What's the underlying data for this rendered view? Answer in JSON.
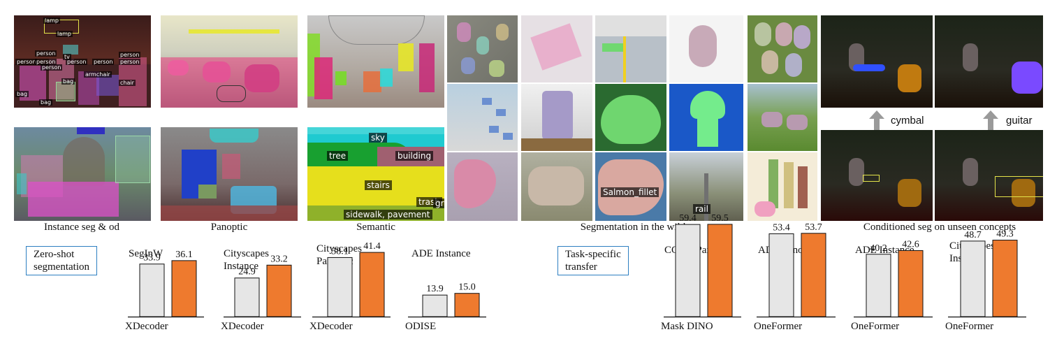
{
  "colors": {
    "baseline_bar": "#e6e6e6",
    "ours_bar": "#ee7a2e",
    "bar_stroke": "#111111",
    "box_border": "#2d7fc1",
    "arrow": "#9a9a9a"
  },
  "captions": {
    "instance": "Instance seg & od",
    "panoptic": "Panoptic",
    "semantic": "Semantic",
    "wild": "Segmentation in the wild",
    "conditioned": "Conditioned seg on unseen concepts"
  },
  "concepts": {
    "cymbal": "cymbal",
    "guitar": "guitar"
  },
  "tags": {
    "instance": [
      "lamp",
      "lamp",
      "person",
      "person",
      "person",
      "person",
      "person",
      "person",
      "person",
      "person",
      "tv",
      "armchair",
      "chair",
      "bag",
      "bag",
      "bag"
    ],
    "semantic": [
      "sky",
      "tree",
      "building",
      "stairs",
      "trash",
      "gra",
      "sidewalk, pavement"
    ],
    "wild": [
      "Salmon_fillet",
      "rail"
    ]
  },
  "sections": {
    "zero_shot": "Zero-shot\nsegmentation",
    "task_specific": "Task-specific\ntransfer"
  },
  "chart_data": [
    {
      "type": "bar",
      "title": "SegInW",
      "categories": [
        "XDecoder",
        ""
      ],
      "values": [
        33.9,
        36.1
      ],
      "baseline_label": "XDecoder"
    },
    {
      "type": "bar",
      "title": "Cityscapes\nInstance",
      "categories": [
        "XDecoder",
        ""
      ],
      "values": [
        24.9,
        33.2
      ],
      "baseline_label": "XDecoder"
    },
    {
      "type": "bar",
      "title": "Cityscapes\nPanoptic",
      "categories": [
        "XDecoder",
        ""
      ],
      "values": [
        38.1,
        41.4
      ],
      "baseline_label": "XDecoder"
    },
    {
      "type": "bar",
      "title": "ADE Instance",
      "categories": [
        "ODISE",
        ""
      ],
      "values": [
        13.9,
        15.0
      ],
      "baseline_label": "ODISE"
    },
    {
      "type": "bar",
      "title": "COCO Panoptic",
      "categories": [
        "Mask DINO",
        ""
      ],
      "values": [
        59.4,
        59.5
      ],
      "baseline_label": "Mask DINO"
    },
    {
      "type": "bar",
      "title": "ADE Panoptic",
      "categories": [
        "OneFormer",
        ""
      ],
      "values": [
        53.4,
        53.7
      ],
      "baseline_label": "OneFormer"
    },
    {
      "type": "bar",
      "title": "ADE Instance",
      "categories": [
        "OneFormer",
        ""
      ],
      "values": [
        40.2,
        42.6
      ],
      "baseline_label": "OneFormer"
    },
    {
      "type": "bar",
      "title": "Cityscapes\nInstance",
      "categories": [
        "OneFormer",
        ""
      ],
      "values": [
        48.7,
        49.3
      ],
      "baseline_label": "OneFormer"
    }
  ]
}
